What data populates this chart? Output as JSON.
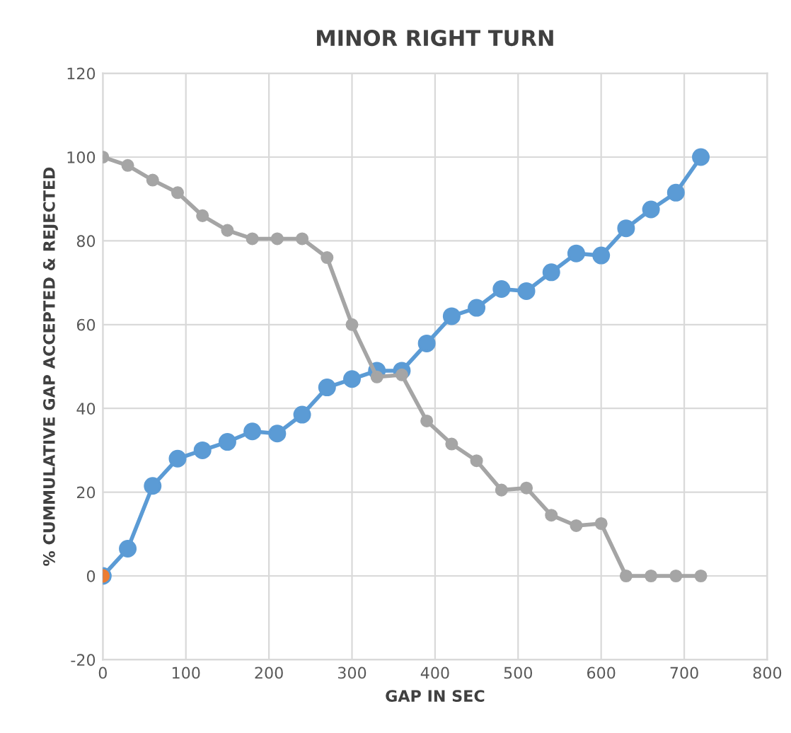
{
  "chart_data": {
    "type": "line",
    "title": "MINOR RIGHT TURN",
    "xlabel": "GAP IN SEC",
    "ylabel": "% CUMMULATIVE GAP ACCEPTED & REJECTED",
    "x": [
      0,
      30,
      60,
      90,
      120,
      150,
      180,
      210,
      240,
      270,
      300,
      330,
      360,
      390,
      420,
      450,
      480,
      510,
      540,
      570,
      600,
      630,
      660,
      690,
      720
    ],
    "series": [
      {
        "color": "#5b9bd5",
        "values": [
          0,
          6.5,
          21.5,
          28,
          30,
          32,
          34.5,
          34,
          38.5,
          45,
          47,
          49,
          49,
          55.5,
          62,
          64,
          68.5,
          68,
          72.5,
          77,
          76.5,
          83,
          87.5,
          91.5,
          100
        ]
      },
      {
        "color": "#a5a5a5",
        "values": [
          100,
          98,
          94.5,
          91.5,
          86,
          82.5,
          80.5,
          80.5,
          80.5,
          76,
          60,
          47.5,
          48,
          37,
          31.5,
          27.5,
          20.5,
          21,
          14.5,
          12,
          12.5,
          0,
          0,
          0,
          0
        ]
      },
      {
        "type": "scatter",
        "color": "#ed7d31",
        "x": [
          0
        ],
        "values": [
          0
        ]
      }
    ],
    "xlim": [
      0,
      800
    ],
    "xticks": [
      0,
      100,
      200,
      300,
      400,
      500,
      600,
      700,
      800
    ],
    "ylim": [
      -20,
      120
    ],
    "yticks": [
      -20,
      0,
      20,
      40,
      60,
      80,
      100,
      120
    ],
    "grid": true,
    "marker": "circle",
    "line_style": "solid",
    "legend": false
  }
}
